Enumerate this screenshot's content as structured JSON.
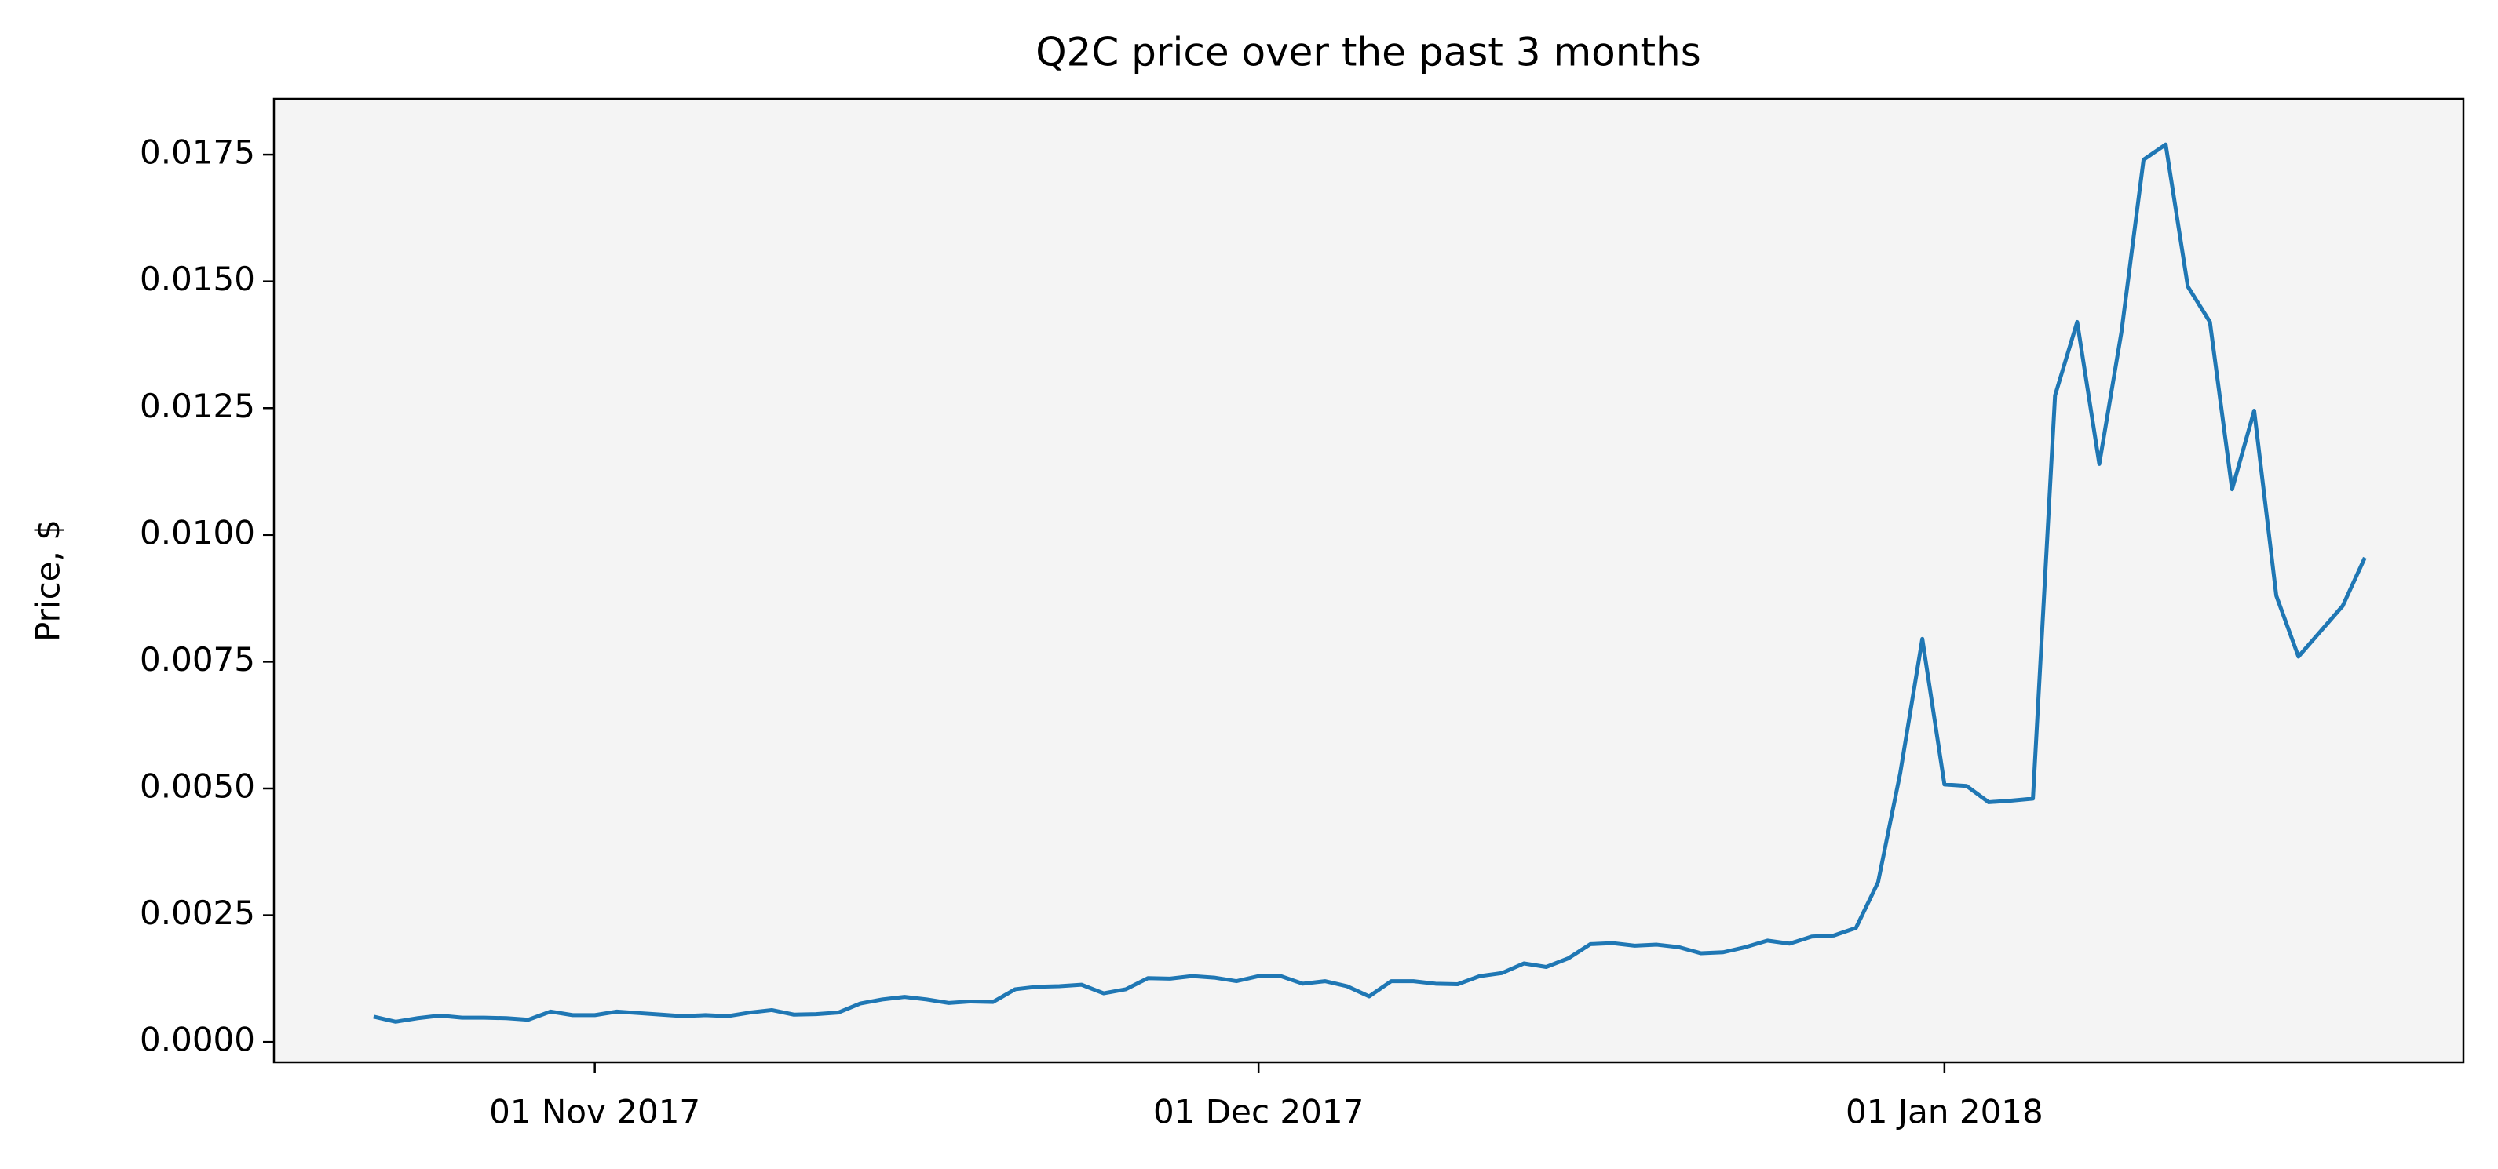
{
  "chart_data": {
    "type": "line",
    "title": "Q2C price over the past 3 months",
    "ylabel": "Price, $",
    "color": "#1f77b4",
    "background": "#f4f4f4",
    "x": [
      "2017-10-22",
      "2017-10-23",
      "2017-10-24",
      "2017-10-25",
      "2017-10-26",
      "2017-10-27",
      "2017-10-28",
      "2017-10-29",
      "2017-10-30",
      "2017-10-31",
      "2017-11-01",
      "2017-11-02",
      "2017-11-03",
      "2017-11-04",
      "2017-11-05",
      "2017-11-06",
      "2017-11-07",
      "2017-11-08",
      "2017-11-09",
      "2017-11-10",
      "2017-11-11",
      "2017-11-12",
      "2017-11-13",
      "2017-11-14",
      "2017-11-15",
      "2017-11-16",
      "2017-11-17",
      "2017-11-18",
      "2017-11-19",
      "2017-11-20",
      "2017-11-21",
      "2017-11-22",
      "2017-11-23",
      "2017-11-24",
      "2017-11-25",
      "2017-11-26",
      "2017-11-27",
      "2017-11-28",
      "2017-11-29",
      "2017-11-30",
      "2017-12-01",
      "2017-12-02",
      "2017-12-03",
      "2017-12-04",
      "2017-12-05",
      "2017-12-06",
      "2017-12-07",
      "2017-12-08",
      "2017-12-09",
      "2017-12-10",
      "2017-12-11",
      "2017-12-12",
      "2017-12-13",
      "2017-12-14",
      "2017-12-15",
      "2017-12-16",
      "2017-12-17",
      "2017-12-18",
      "2017-12-19",
      "2017-12-20",
      "2017-12-21",
      "2017-12-22",
      "2017-12-23",
      "2017-12-24",
      "2017-12-25",
      "2017-12-26",
      "2017-12-27",
      "2017-12-28",
      "2017-12-29",
      "2017-12-30",
      "2017-12-31",
      "2018-01-01",
      "2018-01-02",
      "2018-01-03",
      "2018-01-04",
      "2018-01-05",
      "2018-01-06",
      "2018-01-07",
      "2018-01-08",
      "2018-01-09",
      "2018-01-10",
      "2018-01-11",
      "2018-01-12",
      "2018-01-13",
      "2018-01-14",
      "2018-01-15",
      "2018-01-16",
      "2018-01-17",
      "2018-01-18",
      "2018-01-19",
      "2018-01-20"
    ],
    "values": [
      0.0005,
      0.0004,
      0.00047,
      0.00052,
      0.00048,
      0.00048,
      0.00047,
      0.00044,
      0.0006,
      0.00053,
      0.00053,
      0.0006,
      0.00057,
      0.00054,
      0.00051,
      0.00053,
      0.00051,
      0.00058,
      0.00063,
      0.00054,
      0.00055,
      0.00058,
      0.00076,
      0.00084,
      0.00089,
      0.00084,
      0.00077,
      0.0008,
      0.00079,
      0.00104,
      0.00109,
      0.0011,
      0.00113,
      0.00096,
      0.00104,
      0.00126,
      0.00125,
      0.0013,
      0.00127,
      0.0012,
      0.0013,
      0.0013,
      0.00115,
      0.0012,
      0.0011,
      0.0009,
      0.0012,
      0.0012,
      0.00115,
      0.00114,
      0.0013,
      0.00136,
      0.00155,
      0.00148,
      0.00165,
      0.00193,
      0.00195,
      0.0019,
      0.00192,
      0.00187,
      0.00175,
      0.00177,
      0.00187,
      0.002,
      0.00194,
      0.00208,
      0.0021,
      0.00225,
      0.00315,
      0.0053,
      0.00795,
      0.00508,
      0.00505,
      0.00473,
      0.00476,
      0.0048,
      0.01275,
      0.0142,
      0.0114,
      0.014,
      0.0174,
      0.0177,
      0.0149,
      0.0142,
      0.0109,
      0.01245,
      0.0088,
      0.0076,
      0.0081,
      0.0086,
      0.00955
    ],
    "xlim": [
      "2017-10-17T12:00",
      "2018-01-24T11:00"
    ],
    "xticks": [
      {
        "value": "2017-11-01",
        "label": "01 Nov 2017"
      },
      {
        "value": "2017-12-01",
        "label": "01 Dec 2017"
      },
      {
        "value": "2018-01-01",
        "label": "01 Jan 2018"
      }
    ],
    "ylim": [
      -0.0004,
      0.0186
    ],
    "yticks": [
      {
        "value": 0,
        "label": "0.0000"
      },
      {
        "value": 0.0025,
        "label": "0.0025"
      },
      {
        "value": 0.005,
        "label": "0.0050"
      },
      {
        "value": 0.0075,
        "label": "0.0075"
      },
      {
        "value": 0.01,
        "label": "0.0100"
      },
      {
        "value": 0.0125,
        "label": "0.0125"
      },
      {
        "value": 0.015,
        "label": "0.0150"
      },
      {
        "value": 0.0175,
        "label": "0.0175"
      }
    ]
  }
}
